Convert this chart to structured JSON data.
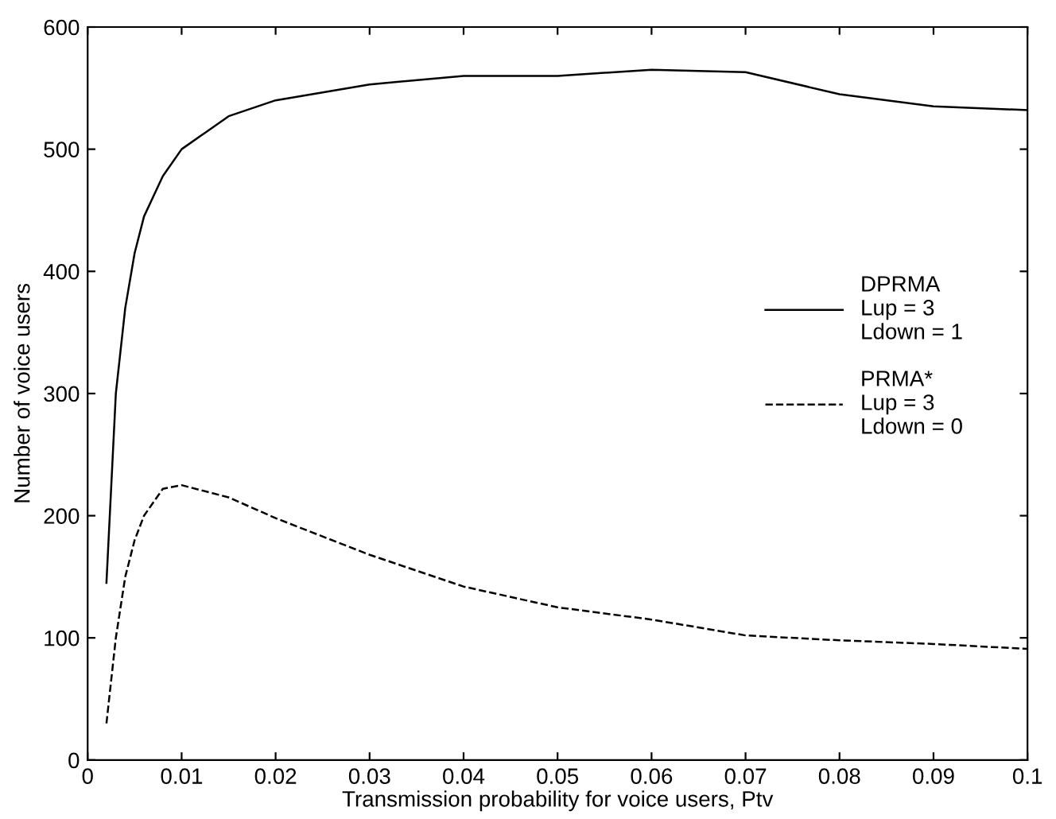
{
  "chart_data": {
    "type": "line",
    "xlabel": "Transmission probability for voice users, Ptv",
    "ylabel": "Number of voice users",
    "x": [
      0.002,
      0.003,
      0.004,
      0.005,
      0.006,
      0.008,
      0.01,
      0.015,
      0.02,
      0.03,
      0.04,
      0.05,
      0.06,
      0.07,
      0.08,
      0.09,
      0.1
    ],
    "series": [
      {
        "name": "DPRMA\nLup = 3\nLdown = 1",
        "color": "#000000",
        "line_style": "solid",
        "values": [
          145,
          300,
          370,
          415,
          445,
          478,
          500,
          527,
          540,
          553,
          560,
          560,
          565,
          563,
          545,
          535,
          532
        ]
      },
      {
        "name": "PRMA*\nLup = 3\nLdown = 0",
        "color": "#000000",
        "line_style": "dashed",
        "values": [
          30,
          100,
          150,
          180,
          200,
          222,
          225,
          215,
          198,
          168,
          142,
          125,
          115,
          102,
          98,
          95,
          91
        ]
      }
    ],
    "xlim": [
      0,
      0.1
    ],
    "xticks": [
      0,
      0.01,
      0.02,
      0.03,
      0.04,
      0.05,
      0.06,
      0.07,
      0.08,
      0.09,
      0.1
    ],
    "ylim": [
      0,
      600
    ],
    "yticks": [
      0,
      100,
      200,
      300,
      400,
      500,
      600
    ],
    "grid": false,
    "legend": "right",
    "marker": "none"
  }
}
